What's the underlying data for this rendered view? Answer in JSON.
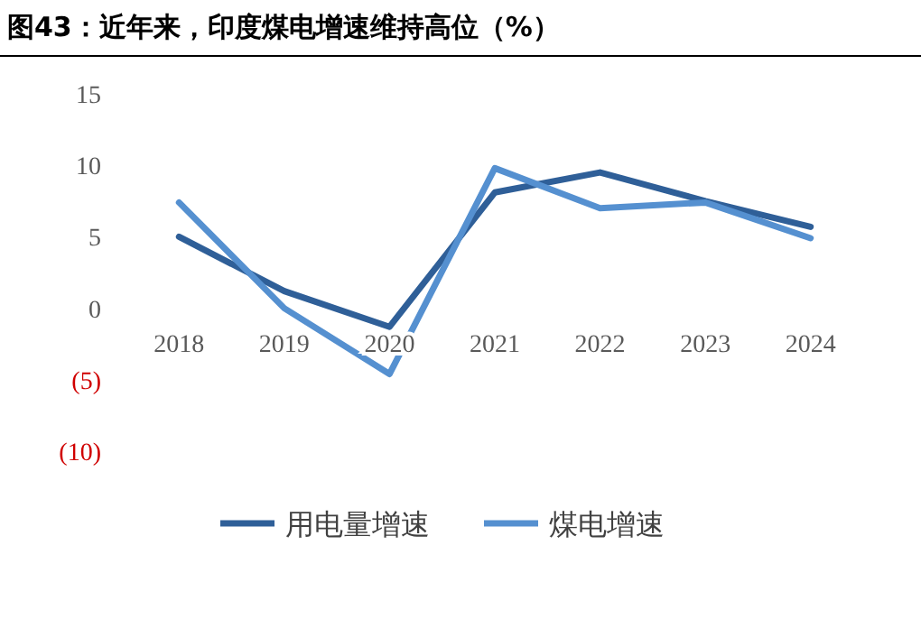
{
  "chart_data": {
    "type": "line",
    "title": "图43：近年来，印度煤电增速维持高位（%）",
    "categories": [
      "2018",
      "2019",
      "2020",
      "2021",
      "2022",
      "2023",
      "2024"
    ],
    "series": [
      {
        "name": "用电量增速",
        "color": "#2f5f98",
        "values": [
          5.0,
          1.2,
          -1.3,
          8.1,
          9.5,
          7.5,
          5.7
        ]
      },
      {
        "name": "煤电增速",
        "color": "#5590d0",
        "values": [
          7.4,
          0.0,
          -4.6,
          9.8,
          7.0,
          7.4,
          4.9
        ]
      }
    ],
    "ylim": [
      -10,
      15
    ],
    "yticks": [
      {
        "value": -10,
        "label": "(10)"
      },
      {
        "value": -5,
        "label": "(5)"
      },
      0,
      5,
      10,
      15
    ],
    "grid": false,
    "legend": "bottom",
    "marker": "none",
    "line_style": "solid"
  }
}
